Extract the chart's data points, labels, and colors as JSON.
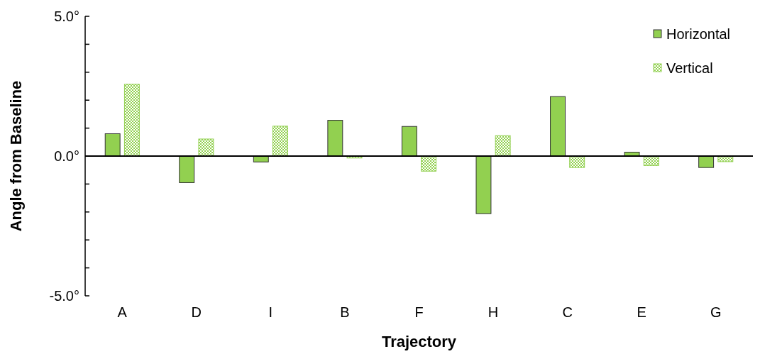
{
  "chart_data": {
    "type": "bar",
    "xlabel": "Trajectory",
    "ylabel": "Angle from Baseline",
    "categories": [
      "A",
      "D",
      "I",
      "B",
      "F",
      "H",
      "C",
      "E",
      "G"
    ],
    "series": [
      {
        "name": "Horizontal",
        "color": "#92d050",
        "values": [
          0.8,
          -0.95,
          -0.21,
          1.28,
          1.06,
          -2.06,
          2.13,
          0.14,
          -0.41
        ]
      },
      {
        "name": "Vertical",
        "color": "#92d050",
        "values": [
          2.57,
          0.61,
          1.07,
          -0.07,
          -0.54,
          0.73,
          -0.41,
          -0.34,
          -0.2
        ]
      }
    ],
    "ylim": [
      -5,
      5
    ],
    "yticks": [
      {
        "value": -5,
        "label": "-5.0°"
      },
      {
        "value": -4,
        "label": null
      },
      {
        "value": -3,
        "label": null
      },
      {
        "value": -2,
        "label": null
      },
      {
        "value": -1,
        "label": null
      },
      {
        "value": 0,
        "label": "0.0°"
      },
      {
        "value": 1,
        "label": null
      },
      {
        "value": 2,
        "label": null
      },
      {
        "value": 3,
        "label": null
      },
      {
        "value": 4,
        "label": null
      },
      {
        "value": 5,
        "label": "5.0°"
      }
    ],
    "legend": "top right"
  }
}
